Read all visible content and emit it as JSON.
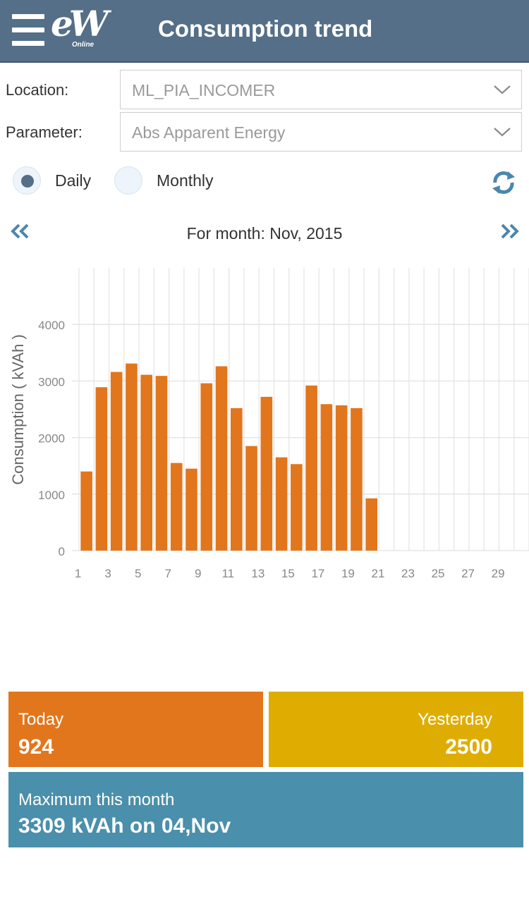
{
  "header": {
    "title": "Consumption trend",
    "logo_text": "eW",
    "logo_subtext": "Online"
  },
  "form": {
    "location_label": "Location:",
    "location_value": "ML_PIA_INCOMER",
    "parameter_label": "Parameter:",
    "parameter_value": "Abs Apparent Energy"
  },
  "mode": {
    "daily_label": "Daily",
    "monthly_label": "Monthly",
    "selected": "Daily"
  },
  "period": {
    "label": "For month: Nov, 2015"
  },
  "chart_data": {
    "type": "bar",
    "title": "",
    "ylabel": "Consumption ( kVAh )",
    "xlabel": "",
    "categories": [
      1,
      2,
      3,
      4,
      5,
      6,
      7,
      8,
      9,
      10,
      11,
      12,
      13,
      14,
      15,
      16,
      17,
      18,
      19,
      20,
      21,
      22,
      23,
      24,
      25,
      26,
      27,
      28,
      29,
      30
    ],
    "x_tick_labels": [
      "1",
      "3",
      "5",
      "7",
      "9",
      "11",
      "13",
      "15",
      "17",
      "19",
      "21",
      "23",
      "25",
      "27",
      "29"
    ],
    "y_tick_labels": [
      "0",
      "1000",
      "2000",
      "3000",
      "4000"
    ],
    "values": [
      1400,
      2890,
      3160,
      3309,
      3110,
      3090,
      1550,
      1450,
      2960,
      3260,
      2520,
      1850,
      2720,
      1650,
      1530,
      2920,
      2590,
      2570,
      2520,
      924,
      null,
      null,
      null,
      null,
      null,
      null,
      null,
      null,
      null,
      null
    ],
    "ylim": [
      0,
      5000
    ],
    "bar_color": "#e2761c",
    "grid": true
  },
  "cards": {
    "today_label": "Today",
    "today_value": "924",
    "yesterday_label": "Yesterday",
    "yesterday_value": "2500",
    "max_label": "Maximum this month",
    "max_value": "3309 kVAh on 04,Nov"
  },
  "colors": {
    "header": "#546f87",
    "today": "#e2761c",
    "yesterday": "#dfad02",
    "max": "#4a8fab"
  }
}
